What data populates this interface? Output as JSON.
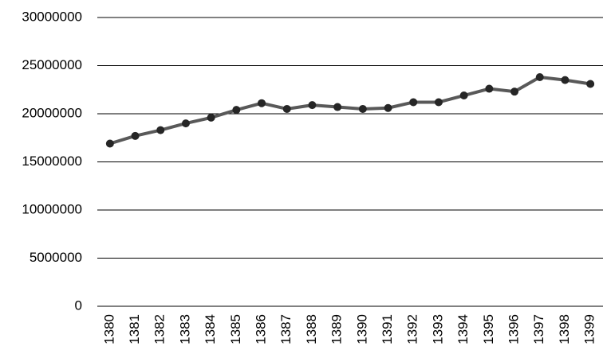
{
  "chart_data": {
    "type": "line",
    "categories": [
      "1380",
      "1381",
      "1382",
      "1383",
      "1384",
      "1385",
      "1386",
      "1387",
      "1388",
      "1389",
      "1390",
      "1391",
      "1392",
      "1393",
      "1394",
      "1395",
      "1396",
      "1397",
      "1398",
      "1399"
    ],
    "values": [
      16900000,
      17700000,
      18300000,
      19000000,
      19600000,
      20400000,
      21100000,
      20500000,
      20900000,
      20700000,
      20500000,
      20600000,
      21200000,
      21200000,
      21900000,
      22600000,
      22300000,
      23800000,
      23500000,
      23100000
    ],
    "color": "#595959",
    "ylim": [
      0,
      30000000
    ],
    "yticks": [
      0,
      5000000,
      10000000,
      15000000,
      20000000,
      25000000,
      30000000
    ],
    "grid": true
  }
}
